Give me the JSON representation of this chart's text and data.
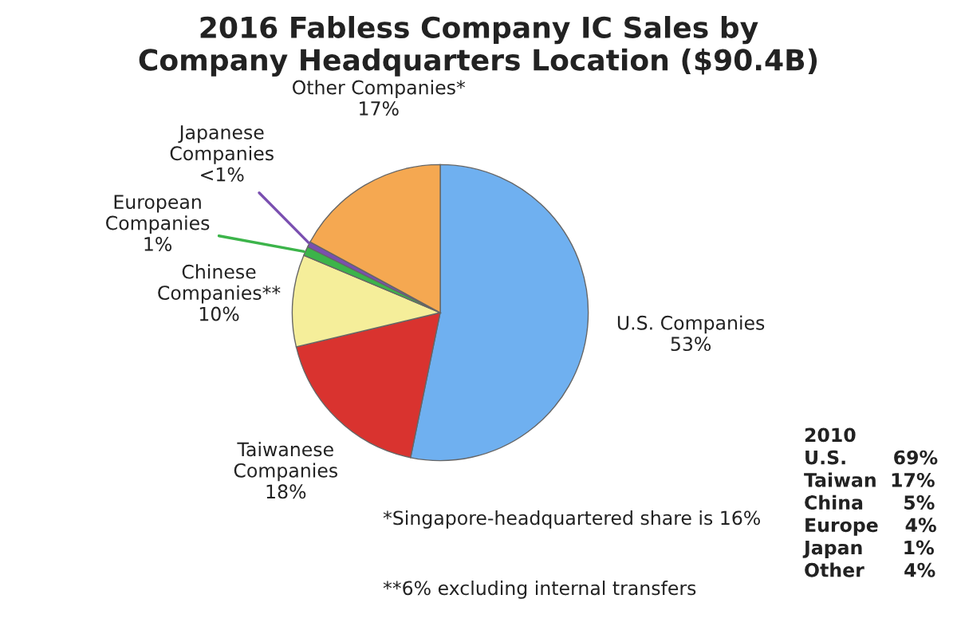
{
  "chart_data": {
    "type": "pie",
    "title": "2016 Fabless Company IC Sales by\nCompany Headquarters Location ($90.4B)",
    "categories": [
      "U.S. Companies",
      "Taiwanese\nCompanies",
      "Chinese\nCompanies**",
      "European\nCompanies",
      "Japanese\nCompanies",
      "Other Companies*"
    ],
    "values": [
      53,
      18,
      10,
      1,
      0.6,
      17
    ],
    "value_labels": [
      "53%",
      "18%",
      "10%",
      "1%",
      "<1%",
      "17%"
    ],
    "colors": [
      "#6fb0f0",
      "#d9332f",
      "#f5ee9a",
      "#3cb44a",
      "#7a4fb0",
      "#f5a851"
    ],
    "annotations": [
      "*Singapore-headquartered share is 16%",
      "**6% excluding internal transfers",
      "2010\nU.S.       69%\nTaiwan  17%\nChina      5%\nEurope    4%\nJapan      1%\nOther      4%"
    ]
  }
}
